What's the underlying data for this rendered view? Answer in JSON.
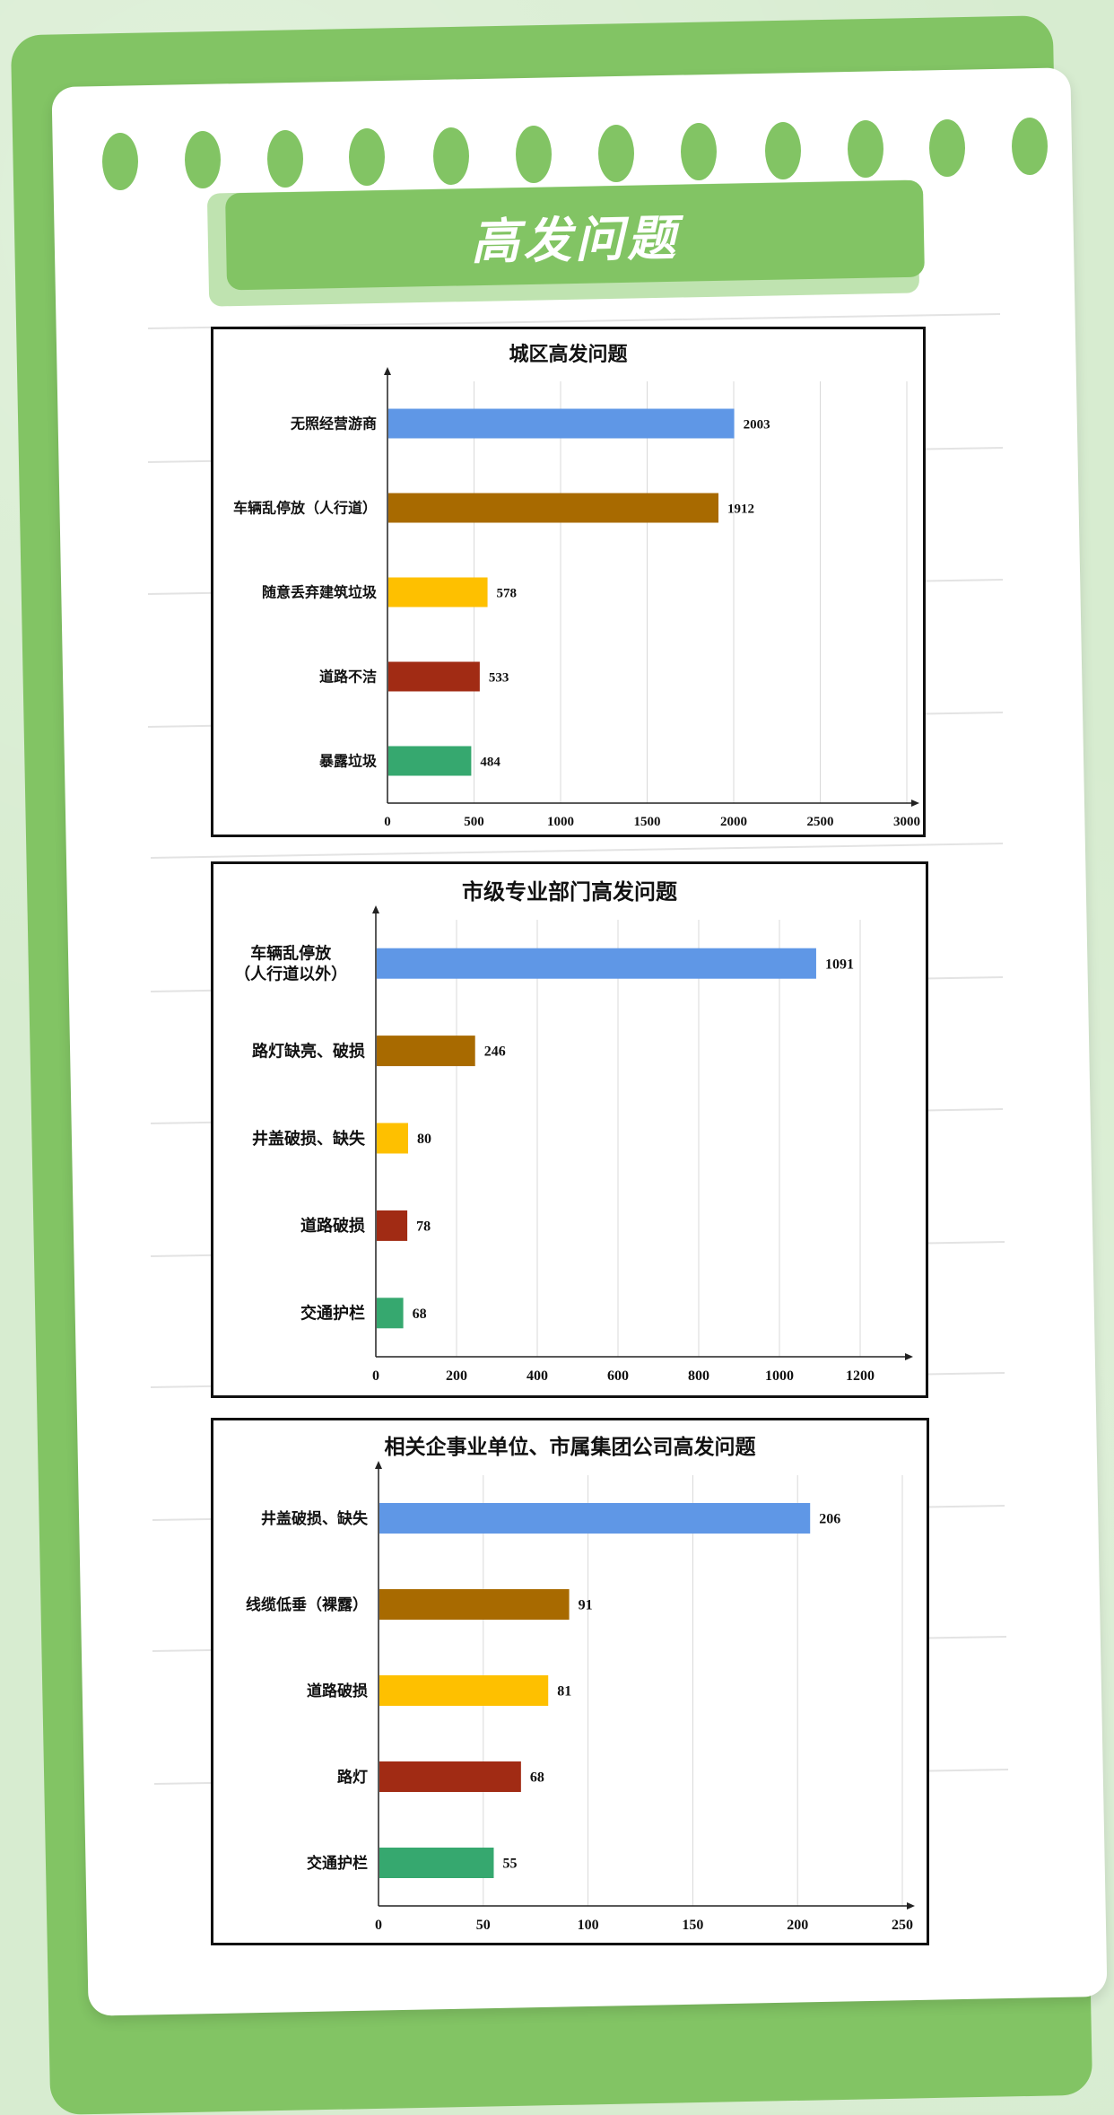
{
  "header": {
    "title": "高发问题"
  },
  "colors": [
    "#5f97e6",
    "#a86a00",
    "#fec000",
    "#a12b14",
    "#36a86f"
  ],
  "chart_data": [
    {
      "type": "bar",
      "orientation": "horizontal",
      "title": "城区高发问题",
      "categories": [
        "无照经营游商",
        "车辆乱停放（人行道）",
        "随意丢弃建筑垃圾",
        "道路不洁",
        "暴露垃圾"
      ],
      "values": [
        2003,
        1912,
        578,
        533,
        484
      ],
      "xlim": [
        0,
        3000
      ],
      "xticks": [
        0,
        500,
        1000,
        1500,
        2000,
        2500,
        3000
      ],
      "grid": true
    },
    {
      "type": "bar",
      "orientation": "horizontal",
      "title": "市级专业部门高发问题",
      "categories": [
        "车辆乱停放\n（人行道以外）",
        "路灯缺亮、破损",
        "井盖破损、缺失",
        "道路破损",
        "交通护栏"
      ],
      "values": [
        1091,
        246,
        80,
        78,
        68
      ],
      "xlim": [
        0,
        1300
      ],
      "xticks": [
        0,
        200,
        400,
        600,
        800,
        1000,
        1200
      ],
      "grid": true
    },
    {
      "type": "bar",
      "orientation": "horizontal",
      "title": "相关企事业单位、市属集团公司高发问题",
      "categories": [
        "井盖破损、缺失",
        "线缆低垂（裸露）",
        "道路破损",
        "路灯",
        "交通护栏"
      ],
      "values": [
        206,
        91,
        81,
        68,
        55
      ],
      "xlim": [
        0,
        250
      ],
      "xticks": [
        0,
        50,
        100,
        150,
        200,
        250
      ],
      "grid": true
    }
  ]
}
